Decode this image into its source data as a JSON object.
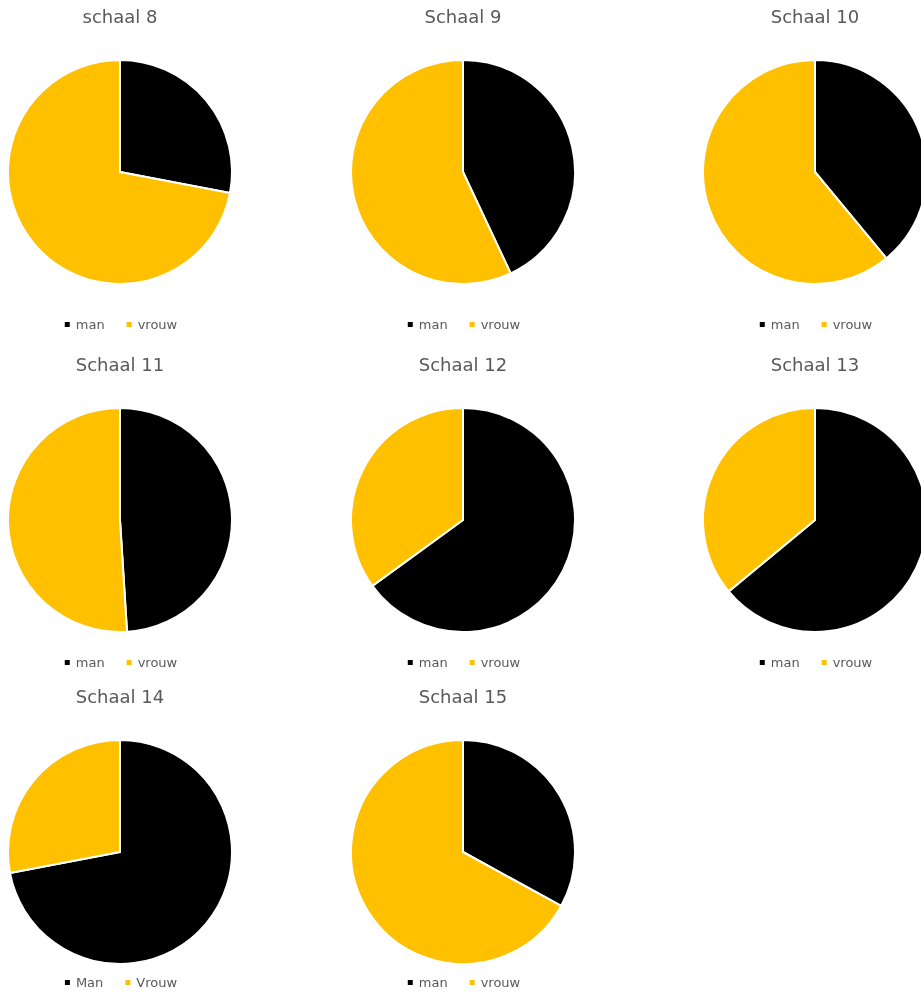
{
  "chart_data": [
    {
      "type": "pie",
      "title": "schaal 8",
      "categories": [
        "man",
        "vrouw"
      ],
      "values": [
        28,
        72
      ],
      "colors": [
        "#000000",
        "#ffc000"
      ],
      "legend": "bottom"
    },
    {
      "type": "pie",
      "title": "Schaal 9",
      "categories": [
        "man",
        "vrouw"
      ],
      "values": [
        43,
        57
      ],
      "colors": [
        "#000000",
        "#ffc000"
      ],
      "legend": "bottom"
    },
    {
      "type": "pie",
      "title": "Schaal 10",
      "categories": [
        "man",
        "vrouw"
      ],
      "values": [
        39,
        61
      ],
      "colors": [
        "#000000",
        "#ffc000"
      ],
      "legend": "bottom"
    },
    {
      "type": "pie",
      "title": "Schaal 11",
      "categories": [
        "man",
        "vrouw"
      ],
      "values": [
        49,
        51
      ],
      "colors": [
        "#000000",
        "#ffc000"
      ],
      "legend": "bottom"
    },
    {
      "type": "pie",
      "title": "Schaal 12",
      "categories": [
        "man",
        "vrouw"
      ],
      "values": [
        65,
        35
      ],
      "colors": [
        "#000000",
        "#ffc000"
      ],
      "legend": "bottom"
    },
    {
      "type": "pie",
      "title": "Schaal 13",
      "categories": [
        "man",
        "vrouw"
      ],
      "values": [
        64,
        36
      ],
      "colors": [
        "#000000",
        "#ffc000"
      ],
      "legend": "bottom"
    },
    {
      "type": "pie",
      "title": "Schaal 14",
      "categories": [
        "Man",
        "Vrouw"
      ],
      "values": [
        72,
        28
      ],
      "colors": [
        "#000000",
        "#ffc000"
      ],
      "legend": "bottom"
    },
    {
      "type": "pie",
      "title": "Schaal 15",
      "categories": [
        "man",
        "vrouw"
      ],
      "values": [
        33,
        67
      ],
      "colors": [
        "#000000",
        "#ffc000"
      ],
      "legend": "bottom"
    }
  ]
}
